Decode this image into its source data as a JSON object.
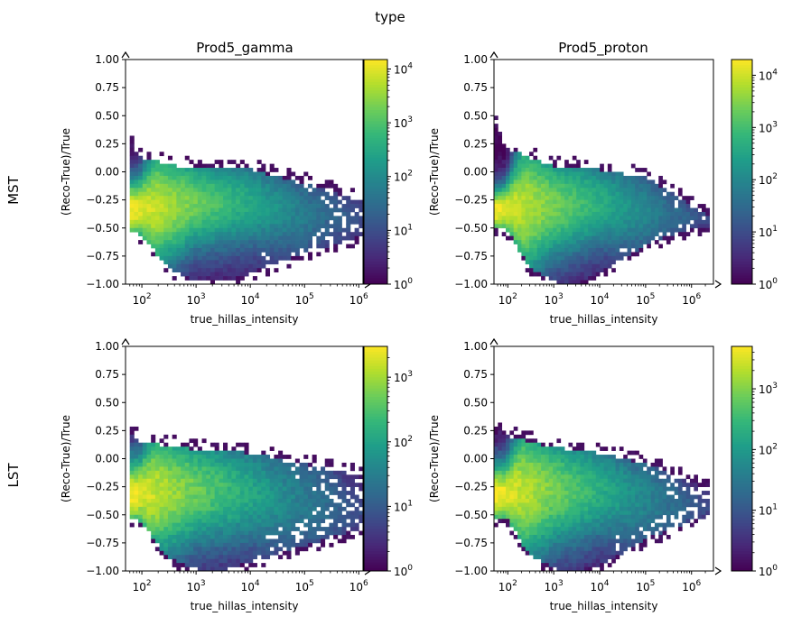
{
  "figure": {
    "suptitle": "type",
    "row_labels": [
      "MST",
      "LST"
    ],
    "col_titles": [
      "Prod5_gamma",
      "Prod5_proton"
    ]
  },
  "chart_data": [
    {
      "type": "heatmap",
      "panel": "mst-gamma",
      "title": "Prod5_gamma",
      "xlabel": "true_hillas_intensity",
      "ylabel": "(Reco-True)/True",
      "xscale": "log",
      "xlim": [
        50,
        1200000
      ],
      "ylim": [
        -1.0,
        1.0
      ],
      "xticks": [
        {
          "value": 100,
          "label": "10^2"
        },
        {
          "value": 1000,
          "label": "10^3"
        },
        {
          "value": 10000,
          "label": "10^4"
        },
        {
          "value": 100000,
          "label": "10^5"
        },
        {
          "value": 1000000,
          "label": "10^6"
        }
      ],
      "yticks": [
        {
          "value": 1.0,
          "label": "1.00"
        },
        {
          "value": 0.75,
          "label": "0.75"
        },
        {
          "value": 0.5,
          "label": "0.50"
        },
        {
          "value": 0.25,
          "label": "0.25"
        },
        {
          "value": 0.0,
          "label": "0.00"
        },
        {
          "value": -0.25,
          "label": "−0.25"
        },
        {
          "value": -0.5,
          "label": "−0.50"
        },
        {
          "value": -0.75,
          "label": "−0.75"
        },
        {
          "value": -1.0,
          "label": "−1.00"
        }
      ],
      "colorbar": {
        "scale": "log",
        "colormap": "viridis",
        "vmin": 1,
        "vmax": 15000,
        "ticks": [
          {
            "value": 1,
            "label": "10^0"
          },
          {
            "value": 10,
            "label": "10^1"
          },
          {
            "value": 100,
            "label": "10^2"
          },
          {
            "value": 1000,
            "label": "10^3"
          },
          {
            "value": 10000,
            "label": "10^4"
          }
        ]
      },
      "peak_count": 15000,
      "outlier_density": 0.35,
      "distribution": {
        "x_min": 55,
        "x_max": 1200000,
        "top_edge": [
          [
            55,
            0.28
          ],
          [
            100,
            0.12
          ],
          [
            1000,
            0.02
          ],
          [
            10000,
            0.02
          ],
          [
            100000,
            -0.1
          ],
          [
            1000000,
            -0.25
          ]
        ],
        "bottom_edge": [
          [
            90,
            -0.55
          ],
          [
            300,
            -0.85
          ],
          [
            1000,
            -0.98
          ],
          [
            3000,
            -0.98
          ],
          [
            10000,
            -0.9
          ],
          [
            100000,
            -0.72
          ],
          [
            1000000,
            -0.58
          ]
        ],
        "ridge": [
          [
            55,
            -0.35
          ],
          [
            200,
            -0.32
          ],
          [
            1000,
            -0.28
          ],
          [
            10000,
            -0.28
          ],
          [
            100000,
            -0.38
          ],
          [
            1000000,
            -0.4
          ]
        ]
      }
    },
    {
      "type": "heatmap",
      "panel": "mst-proton",
      "title": "Prod5_proton",
      "xlabel": "true_hillas_intensity",
      "ylabel": "(Reco-True)/True",
      "xscale": "log",
      "xlim": [
        50,
        3000000
      ],
      "ylim": [
        -1.0,
        1.0
      ],
      "xticks": [
        {
          "value": 100,
          "label": "10^2"
        },
        {
          "value": 1000,
          "label": "10^3"
        },
        {
          "value": 10000,
          "label": "10^4"
        },
        {
          "value": 100000,
          "label": "10^5"
        },
        {
          "value": 1000000,
          "label": "10^6"
        }
      ],
      "yticks": [
        {
          "value": 1.0,
          "label": "1.00"
        },
        {
          "value": 0.75,
          "label": "0.75"
        },
        {
          "value": 0.5,
          "label": "0.50"
        },
        {
          "value": 0.25,
          "label": "0.25"
        },
        {
          "value": 0.0,
          "label": "0.00"
        },
        {
          "value": -0.25,
          "label": "−0.25"
        },
        {
          "value": -0.5,
          "label": "−0.50"
        },
        {
          "value": -0.75,
          "label": "−0.75"
        },
        {
          "value": -1.0,
          "label": "−1.00"
        }
      ],
      "colorbar": {
        "scale": "log",
        "colormap": "viridis",
        "vmin": 1,
        "vmax": 20000,
        "ticks": [
          {
            "value": 1,
            "label": "10^0"
          },
          {
            "value": 10,
            "label": "10^1"
          },
          {
            "value": 100,
            "label": "10^2"
          },
          {
            "value": 1000,
            "label": "10^3"
          },
          {
            "value": 10000,
            "label": "10^4"
          }
        ]
      },
      "peak_count": 20000,
      "outlier_density": 0.35,
      "distribution": {
        "x_min": 55,
        "x_max": 2600000,
        "top_edge": [
          [
            55,
            0.4
          ],
          [
            100,
            0.2
          ],
          [
            1000,
            0.05
          ],
          [
            10000,
            0.02
          ],
          [
            100000,
            -0.05
          ],
          [
            1000000,
            -0.3
          ],
          [
            2600000,
            -0.4
          ]
        ],
        "bottom_edge": [
          [
            90,
            -0.5
          ],
          [
            300,
            -0.85
          ],
          [
            1000,
            -0.98
          ],
          [
            3000,
            -1.0
          ],
          [
            10000,
            -0.9
          ],
          [
            100000,
            -0.65
          ],
          [
            1000000,
            -0.5
          ],
          [
            2600000,
            -0.48
          ]
        ],
        "ridge": [
          [
            55,
            -0.35
          ],
          [
            200,
            -0.32
          ],
          [
            1000,
            -0.3
          ],
          [
            10000,
            -0.28
          ],
          [
            100000,
            -0.35
          ],
          [
            1000000,
            -0.4
          ]
        ]
      }
    },
    {
      "type": "heatmap",
      "panel": "lst-gamma",
      "title": "",
      "xlabel": "true_hillas_intensity",
      "ylabel": "(Reco-True)/True",
      "xscale": "log",
      "xlim": [
        50,
        1200000
      ],
      "ylim": [
        -1.0,
        1.0
      ],
      "xticks": [
        {
          "value": 100,
          "label": "10^2"
        },
        {
          "value": 1000,
          "label": "10^3"
        },
        {
          "value": 10000,
          "label": "10^4"
        },
        {
          "value": 100000,
          "label": "10^5"
        },
        {
          "value": 1000000,
          "label": "10^6"
        }
      ],
      "yticks": [
        {
          "value": 1.0,
          "label": "1.00"
        },
        {
          "value": 0.75,
          "label": "0.75"
        },
        {
          "value": 0.5,
          "label": "0.50"
        },
        {
          "value": 0.25,
          "label": "0.25"
        },
        {
          "value": 0.0,
          "label": "0.00"
        },
        {
          "value": -0.25,
          "label": "−0.25"
        },
        {
          "value": -0.5,
          "label": "−0.50"
        },
        {
          "value": -0.75,
          "label": "−0.75"
        },
        {
          "value": -1.0,
          "label": "−1.00"
        }
      ],
      "colorbar": {
        "scale": "log",
        "colormap": "viridis",
        "vmin": 1,
        "vmax": 3000,
        "ticks": [
          {
            "value": 1,
            "label": "10^0"
          },
          {
            "value": 10,
            "label": "10^1"
          },
          {
            "value": 100,
            "label": "10^2"
          },
          {
            "value": 1000,
            "label": "10^3"
          }
        ]
      },
      "peak_count": 3000,
      "outlier_density": 0.4,
      "distribution": {
        "x_min": 55,
        "x_max": 1200000,
        "top_edge": [
          [
            55,
            0.22
          ],
          [
            100,
            0.15
          ],
          [
            1000,
            0.08
          ],
          [
            10000,
            0.05
          ],
          [
            100000,
            -0.05
          ],
          [
            1000000,
            -0.15
          ]
        ],
        "bottom_edge": [
          [
            90,
            -0.55
          ],
          [
            300,
            -0.88
          ],
          [
            1000,
            -0.98
          ],
          [
            3000,
            -1.0
          ],
          [
            10000,
            -0.92
          ],
          [
            100000,
            -0.78
          ],
          [
            1000000,
            -0.62
          ]
        ],
        "ridge": [
          [
            55,
            -0.32
          ],
          [
            200,
            -0.3
          ],
          [
            1000,
            -0.28
          ],
          [
            10000,
            -0.3
          ],
          [
            100000,
            -0.38
          ],
          [
            1000000,
            -0.45
          ]
        ]
      }
    },
    {
      "type": "heatmap",
      "panel": "lst-proton",
      "title": "",
      "xlabel": "true_hillas_intensity",
      "ylabel": "(Reco-True)/True",
      "xscale": "log",
      "xlim": [
        50,
        3000000
      ],
      "ylim": [
        -1.0,
        1.0
      ],
      "xticks": [
        {
          "value": 100,
          "label": "10^2"
        },
        {
          "value": 1000,
          "label": "10^3"
        },
        {
          "value": 10000,
          "label": "10^4"
        },
        {
          "value": 100000,
          "label": "10^5"
        },
        {
          "value": 1000000,
          "label": "10^6"
        }
      ],
      "yticks": [
        {
          "value": 1.0,
          "label": "1.00"
        },
        {
          "value": 0.75,
          "label": "0.75"
        },
        {
          "value": 0.5,
          "label": "0.50"
        },
        {
          "value": 0.25,
          "label": "0.25"
        },
        {
          "value": 0.0,
          "label": "0.00"
        },
        {
          "value": -0.25,
          "label": "−0.25"
        },
        {
          "value": -0.5,
          "label": "−0.50"
        },
        {
          "value": -0.75,
          "label": "−0.75"
        },
        {
          "value": -1.0,
          "label": "−1.00"
        }
      ],
      "colorbar": {
        "scale": "log",
        "colormap": "viridis",
        "vmin": 1,
        "vmax": 5000,
        "ticks": [
          {
            "value": 1,
            "label": "10^0"
          },
          {
            "value": 10,
            "label": "10^1"
          },
          {
            "value": 100,
            "label": "10^2"
          },
          {
            "value": 1000,
            "label": "10^3"
          }
        ]
      },
      "peak_count": 5000,
      "outlier_density": 0.4,
      "distribution": {
        "x_min": 55,
        "x_max": 2600000,
        "top_edge": [
          [
            55,
            0.3
          ],
          [
            100,
            0.2
          ],
          [
            1000,
            0.1
          ],
          [
            10000,
            0.05
          ],
          [
            100000,
            -0.05
          ],
          [
            1000000,
            -0.2
          ],
          [
            2600000,
            -0.3
          ]
        ],
        "bottom_edge": [
          [
            90,
            -0.52
          ],
          [
            300,
            -0.86
          ],
          [
            1000,
            -0.98
          ],
          [
            3000,
            -1.0
          ],
          [
            10000,
            -0.95
          ],
          [
            100000,
            -0.72
          ],
          [
            1000000,
            -0.55
          ],
          [
            2600000,
            -0.5
          ]
        ],
        "ridge": [
          [
            55,
            -0.32
          ],
          [
            200,
            -0.3
          ],
          [
            1000,
            -0.28
          ],
          [
            10000,
            -0.28
          ],
          [
            100000,
            -0.36
          ],
          [
            1000000,
            -0.42
          ]
        ]
      }
    }
  ]
}
